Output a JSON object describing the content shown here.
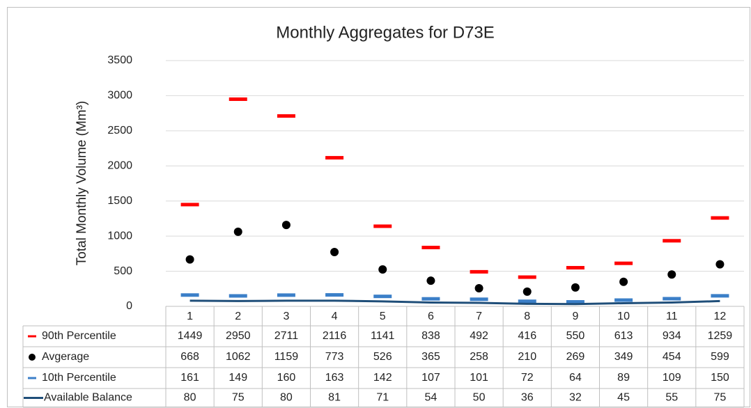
{
  "chart_data": {
    "type": "line",
    "title": "Monthly Aggregates for D73E",
    "y_label": "Total Monthly Volume (Mm³)",
    "categories": [
      "1",
      "2",
      "3",
      "4",
      "5",
      "6",
      "7",
      "8",
      "9",
      "10",
      "11",
      "12"
    ],
    "series": [
      {
        "name": "90th Percentile",
        "color": "#ff0000",
        "marker": "dash",
        "values": [
          1449,
          2950,
          2711,
          2116,
          1141,
          838,
          492,
          416,
          550,
          613,
          934,
          1259
        ]
      },
      {
        "name": "Avgerage",
        "color": "#000000",
        "marker": "dot",
        "values": [
          668,
          1062,
          1159,
          773,
          526,
          365,
          258,
          210,
          269,
          349,
          454,
          599
        ]
      },
      {
        "name": "10th Percentile",
        "color": "#3b7fc8",
        "marker": "dash",
        "values": [
          161,
          149,
          160,
          163,
          142,
          107,
          101,
          72,
          64,
          89,
          109,
          150
        ]
      },
      {
        "name": "Available Balance",
        "color": "#1f4e79",
        "marker": "line",
        "values": [
          80,
          75,
          80,
          81,
          71,
          54,
          50,
          36,
          32,
          45,
          55,
          75
        ]
      }
    ],
    "ylim": [
      0,
      3500
    ],
    "yticks": [
      0,
      500,
      1000,
      1500,
      2000,
      2500,
      3000,
      3500
    ],
    "grid": true
  }
}
